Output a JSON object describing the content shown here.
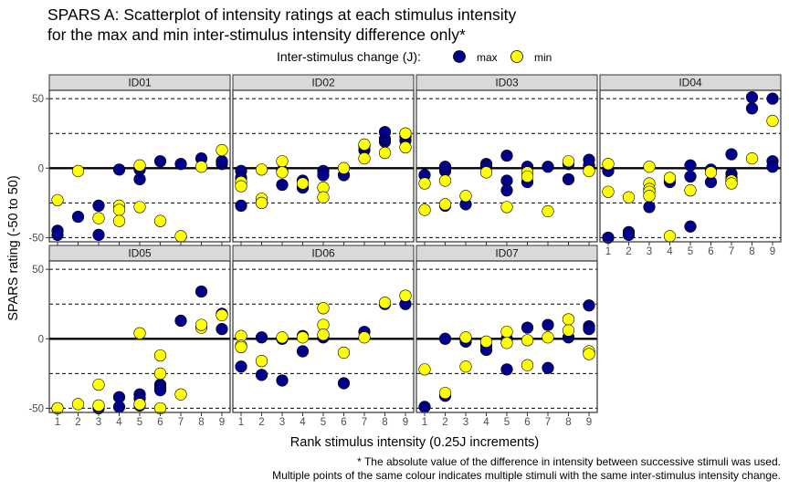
{
  "chart_data": {
    "type": "scatter",
    "title": [
      "SPARS A: Scatterplot of intensity ratings at each stimulus intensity",
      "for the max and min inter-stimulus intensity difference only*"
    ],
    "xlabel": "Rank stimulus intensity (0.25J increments)",
    "ylabel": "SPARS rating (-50 to 50)",
    "xlim": [
      0.6,
      9.4
    ],
    "ylim": [
      -53,
      56
    ],
    "x_ticks": [
      "1",
      "2",
      "3",
      "4",
      "5",
      "6",
      "7",
      "8",
      "9"
    ],
    "y_ticks": [
      50,
      0,
      -50
    ],
    "y_tick_labels": [
      "50",
      "0",
      "-50"
    ],
    "reference_lines": {
      "solid": [
        0
      ],
      "dashed": [
        -50,
        -25,
        25,
        50
      ]
    },
    "legend": {
      "title": "Inter-stimulus change (J):",
      "position": "top",
      "entries": [
        {
          "label": "max",
          "color": "#00008B"
        },
        {
          "label": "min",
          "color": "#FFFF00"
        }
      ]
    },
    "caption": [
      "* The absolute value of the difference in intensity between successive stimuli was used.",
      "Multiple points of the same colour indicates multiple stimuli with the same inter-stimulus intensity change."
    ],
    "panels": [
      {
        "label": "ID01",
        "max": [
          [
            1,
            -45
          ],
          [
            1,
            -48
          ],
          [
            2,
            -35
          ],
          [
            3,
            -27
          ],
          [
            3,
            -48
          ],
          [
            4,
            -1
          ],
          [
            5,
            -8
          ],
          [
            5,
            -1
          ],
          [
            6,
            5
          ],
          [
            7,
            3
          ],
          [
            8,
            7
          ],
          [
            9,
            3
          ],
          [
            9,
            5
          ]
        ],
        "min": [
          [
            1,
            -23
          ],
          [
            2,
            -2
          ],
          [
            3,
            -36
          ],
          [
            4,
            -27
          ],
          [
            4,
            -30
          ],
          [
            4,
            -38
          ],
          [
            5,
            2
          ],
          [
            5,
            -28
          ],
          [
            6,
            -38
          ],
          [
            7,
            -49
          ],
          [
            8,
            1
          ],
          [
            9,
            13
          ]
        ]
      },
      {
        "label": "ID02",
        "max": [
          [
            1,
            -2
          ],
          [
            1,
            -7
          ],
          [
            1,
            -27
          ],
          [
            2,
            -25
          ],
          [
            3,
            -2
          ],
          [
            3,
            -12
          ],
          [
            4,
            -9
          ],
          [
            4,
            -14
          ],
          [
            5,
            -2
          ],
          [
            5,
            -5
          ],
          [
            6,
            -5
          ],
          [
            7,
            13
          ],
          [
            7,
            16
          ],
          [
            8,
            19
          ],
          [
            8,
            21
          ],
          [
            8,
            26
          ],
          [
            9,
            20
          ],
          [
            9,
            23
          ]
        ],
        "min": [
          [
            1,
            -10
          ],
          [
            1,
            -13
          ],
          [
            2,
            -1
          ],
          [
            2,
            -22
          ],
          [
            2,
            -25
          ],
          [
            3,
            5
          ],
          [
            3,
            -3
          ],
          [
            4,
            -11
          ],
          [
            5,
            -14
          ],
          [
            5,
            -21
          ],
          [
            6,
            0
          ],
          [
            7,
            7
          ],
          [
            7,
            17
          ],
          [
            8,
            11
          ],
          [
            9,
            15
          ],
          [
            9,
            25
          ]
        ]
      },
      {
        "label": "ID03",
        "max": [
          [
            1,
            -5
          ],
          [
            2,
            -2
          ],
          [
            2,
            1
          ],
          [
            2,
            -27
          ],
          [
            3,
            -26
          ],
          [
            4,
            3
          ],
          [
            4,
            1
          ],
          [
            5,
            9
          ],
          [
            5,
            -9
          ],
          [
            5,
            -16
          ],
          [
            6,
            -10
          ],
          [
            6,
            1
          ],
          [
            7,
            1
          ],
          [
            8,
            -8
          ],
          [
            8,
            3
          ],
          [
            9,
            2
          ],
          [
            9,
            6
          ]
        ],
        "min": [
          [
            1,
            -11
          ],
          [
            1,
            -30
          ],
          [
            2,
            -9
          ],
          [
            2,
            -26
          ],
          [
            3,
            -20
          ],
          [
            4,
            -3
          ],
          [
            5,
            -28
          ],
          [
            6,
            -3
          ],
          [
            6,
            -6
          ],
          [
            7,
            -31
          ],
          [
            8,
            5
          ],
          [
            9,
            -2
          ]
        ]
      },
      {
        "label": "ID04",
        "max": [
          [
            1,
            -2
          ],
          [
            1,
            -50
          ],
          [
            2,
            -46
          ],
          [
            2,
            -48
          ],
          [
            3,
            -28
          ],
          [
            4,
            -8
          ],
          [
            4,
            -10
          ],
          [
            5,
            2
          ],
          [
            5,
            -6
          ],
          [
            5,
            -42
          ],
          [
            6,
            -1
          ],
          [
            6,
            -10
          ],
          [
            7,
            10
          ],
          [
            7,
            -4
          ],
          [
            7,
            -7
          ],
          [
            8,
            43
          ],
          [
            8,
            51
          ],
          [
            9,
            50
          ],
          [
            9,
            5
          ],
          [
            9,
            1
          ]
        ],
        "min": [
          [
            1,
            3
          ],
          [
            1,
            -17
          ],
          [
            2,
            -21
          ],
          [
            3,
            1
          ],
          [
            3,
            -11
          ],
          [
            3,
            -15
          ],
          [
            3,
            -17
          ],
          [
            3,
            -20
          ],
          [
            4,
            -7
          ],
          [
            4,
            -49
          ],
          [
            5,
            -16
          ],
          [
            6,
            -3
          ],
          [
            7,
            -9
          ],
          [
            7,
            -11
          ],
          [
            8,
            7
          ],
          [
            9,
            34
          ]
        ]
      },
      {
        "label": "ID05",
        "max": [
          [
            1,
            -50
          ],
          [
            3,
            -50
          ],
          [
            4,
            -42
          ],
          [
            4,
            -49
          ],
          [
            5,
            -40
          ],
          [
            5,
            -43
          ],
          [
            5,
            -48
          ],
          [
            6,
            -33
          ],
          [
            6,
            -35
          ],
          [
            6,
            -37
          ],
          [
            7,
            13
          ],
          [
            8,
            34
          ],
          [
            9,
            7
          ],
          [
            9,
            18
          ]
        ],
        "min": [
          [
            1,
            -50
          ],
          [
            2,
            -47
          ],
          [
            3,
            -33
          ],
          [
            3,
            -48
          ],
          [
            5,
            4
          ],
          [
            5,
            -47
          ],
          [
            6,
            -12
          ],
          [
            6,
            -25
          ],
          [
            6,
            -50
          ],
          [
            7,
            -40
          ],
          [
            8,
            8
          ],
          [
            8,
            10
          ],
          [
            9,
            17
          ]
        ]
      },
      {
        "label": "ID06",
        "max": [
          [
            1,
            -20
          ],
          [
            2,
            1
          ],
          [
            2,
            -26
          ],
          [
            3,
            0
          ],
          [
            3,
            -30
          ],
          [
            4,
            2
          ],
          [
            4,
            -9
          ],
          [
            5,
            1
          ],
          [
            6,
            -32
          ],
          [
            7,
            5
          ],
          [
            8,
            25
          ],
          [
            9,
            25
          ]
        ],
        "min": [
          [
            1,
            2
          ],
          [
            1,
            -5
          ],
          [
            1,
            -6
          ],
          [
            2,
            -16
          ],
          [
            3,
            1
          ],
          [
            4,
            1
          ],
          [
            5,
            22
          ],
          [
            5,
            10
          ],
          [
            5,
            3
          ],
          [
            6,
            -10
          ],
          [
            7,
            1
          ],
          [
            8,
            26
          ],
          [
            9,
            31
          ]
        ]
      },
      {
        "label": "ID07",
        "max": [
          [
            1,
            -49
          ],
          [
            2,
            0
          ],
          [
            2,
            -41
          ],
          [
            3,
            -2
          ],
          [
            4,
            -5
          ],
          [
            4,
            -8
          ],
          [
            5,
            0
          ],
          [
            5,
            -22
          ],
          [
            6,
            8
          ],
          [
            7,
            10
          ],
          [
            7,
            -21
          ],
          [
            8,
            1
          ],
          [
            9,
            24
          ],
          [
            9,
            9
          ],
          [
            9,
            7
          ]
        ],
        "min": [
          [
            1,
            -22
          ],
          [
            2,
            -39
          ],
          [
            3,
            1
          ],
          [
            3,
            -20
          ],
          [
            4,
            -2
          ],
          [
            5,
            5
          ],
          [
            5,
            -3
          ],
          [
            6,
            -1
          ],
          [
            6,
            -19
          ],
          [
            7,
            1
          ],
          [
            8,
            14
          ],
          [
            8,
            6
          ],
          [
            9,
            -9
          ],
          [
            9,
            -11
          ]
        ]
      }
    ]
  }
}
